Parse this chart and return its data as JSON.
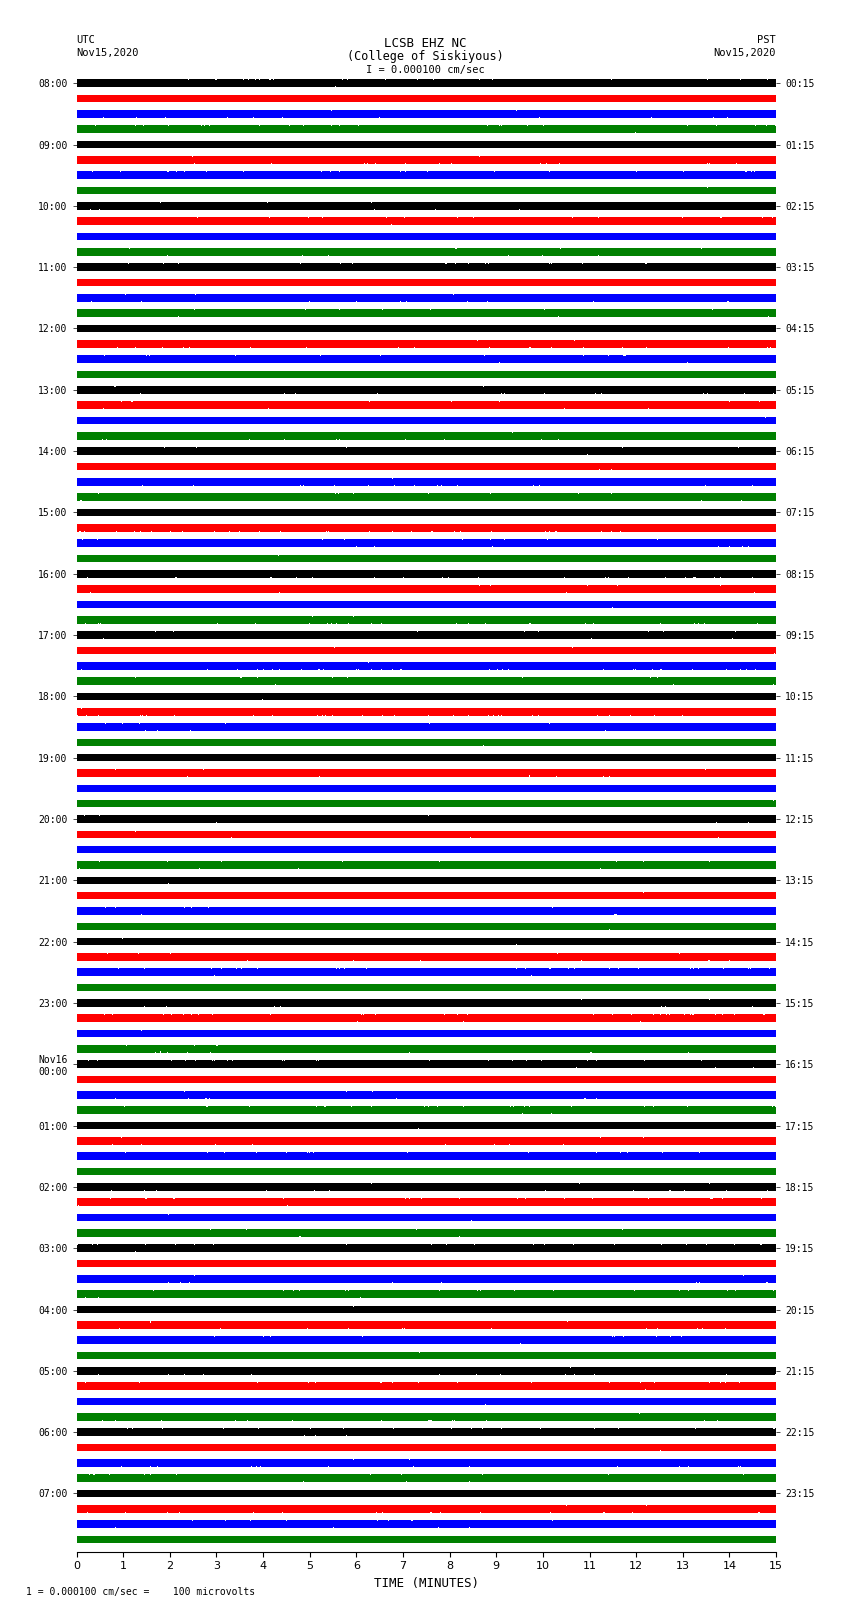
{
  "title_line1": "LCSB EHZ NC",
  "title_line2": "(College of Siskiyous)",
  "title_line3": "I = 0.000100 cm/sec",
  "scale_bar_label": "I = 0.000100 cm/sec",
  "utc_label": "UTC",
  "utc_date": "Nov15,2020",
  "pst_label": "PST",
  "pst_date": "Nov15,2020",
  "xlabel": "TIME (MINUTES)",
  "footer": "1 = 0.000100 cm/sec =    100 microvolts",
  "colors": [
    "black",
    "red",
    "blue",
    "green"
  ],
  "n_traces": 96,
  "trace_duration_minutes": 15,
  "sample_rate": 100,
  "amplitude_scale": 0.42,
  "left_times": [
    "08:00",
    "",
    "",
    "",
    "09:00",
    "",
    "",
    "",
    "10:00",
    "",
    "",
    "",
    "11:00",
    "",
    "",
    "",
    "12:00",
    "",
    "",
    "",
    "13:00",
    "",
    "",
    "",
    "14:00",
    "",
    "",
    "",
    "15:00",
    "",
    "",
    "",
    "16:00",
    "",
    "",
    "",
    "17:00",
    "",
    "",
    "",
    "18:00",
    "",
    "",
    "",
    "19:00",
    "",
    "",
    "",
    "20:00",
    "",
    "",
    "",
    "21:00",
    "",
    "",
    "",
    "22:00",
    "",
    "",
    "",
    "23:00",
    "",
    "",
    "",
    "Nov16\n00:00",
    "",
    "",
    "",
    "01:00",
    "",
    "",
    "",
    "02:00",
    "",
    "",
    "",
    "03:00",
    "",
    "",
    "",
    "04:00",
    "",
    "",
    "",
    "05:00",
    "",
    "",
    "",
    "06:00",
    "",
    "",
    "",
    "07:00",
    "",
    "",
    ""
  ],
  "right_times": [
    "00:15",
    "",
    "",
    "",
    "01:15",
    "",
    "",
    "",
    "02:15",
    "",
    "",
    "",
    "03:15",
    "",
    "",
    "",
    "04:15",
    "",
    "",
    "",
    "05:15",
    "",
    "",
    "",
    "06:15",
    "",
    "",
    "",
    "07:15",
    "",
    "",
    "",
    "08:15",
    "",
    "",
    "",
    "09:15",
    "",
    "",
    "",
    "10:15",
    "",
    "",
    "",
    "11:15",
    "",
    "",
    "",
    "12:15",
    "",
    "",
    "",
    "13:15",
    "",
    "",
    "",
    "14:15",
    "",
    "",
    "",
    "15:15",
    "",
    "",
    "",
    "16:15",
    "",
    "",
    "",
    "17:15",
    "",
    "",
    "",
    "18:15",
    "",
    "",
    "",
    "19:15",
    "",
    "",
    "",
    "20:15",
    "",
    "",
    "",
    "21:15",
    "",
    "",
    "",
    "22:15",
    "",
    "",
    "",
    "23:15",
    "",
    "",
    ""
  ],
  "background_color": "white",
  "trace_linewidth": 0.3,
  "noise_base": 0.25,
  "low_freq_scale": 0.08,
  "event_prob": 4,
  "event_amp_min": 0.3,
  "event_amp_max": 1.2
}
